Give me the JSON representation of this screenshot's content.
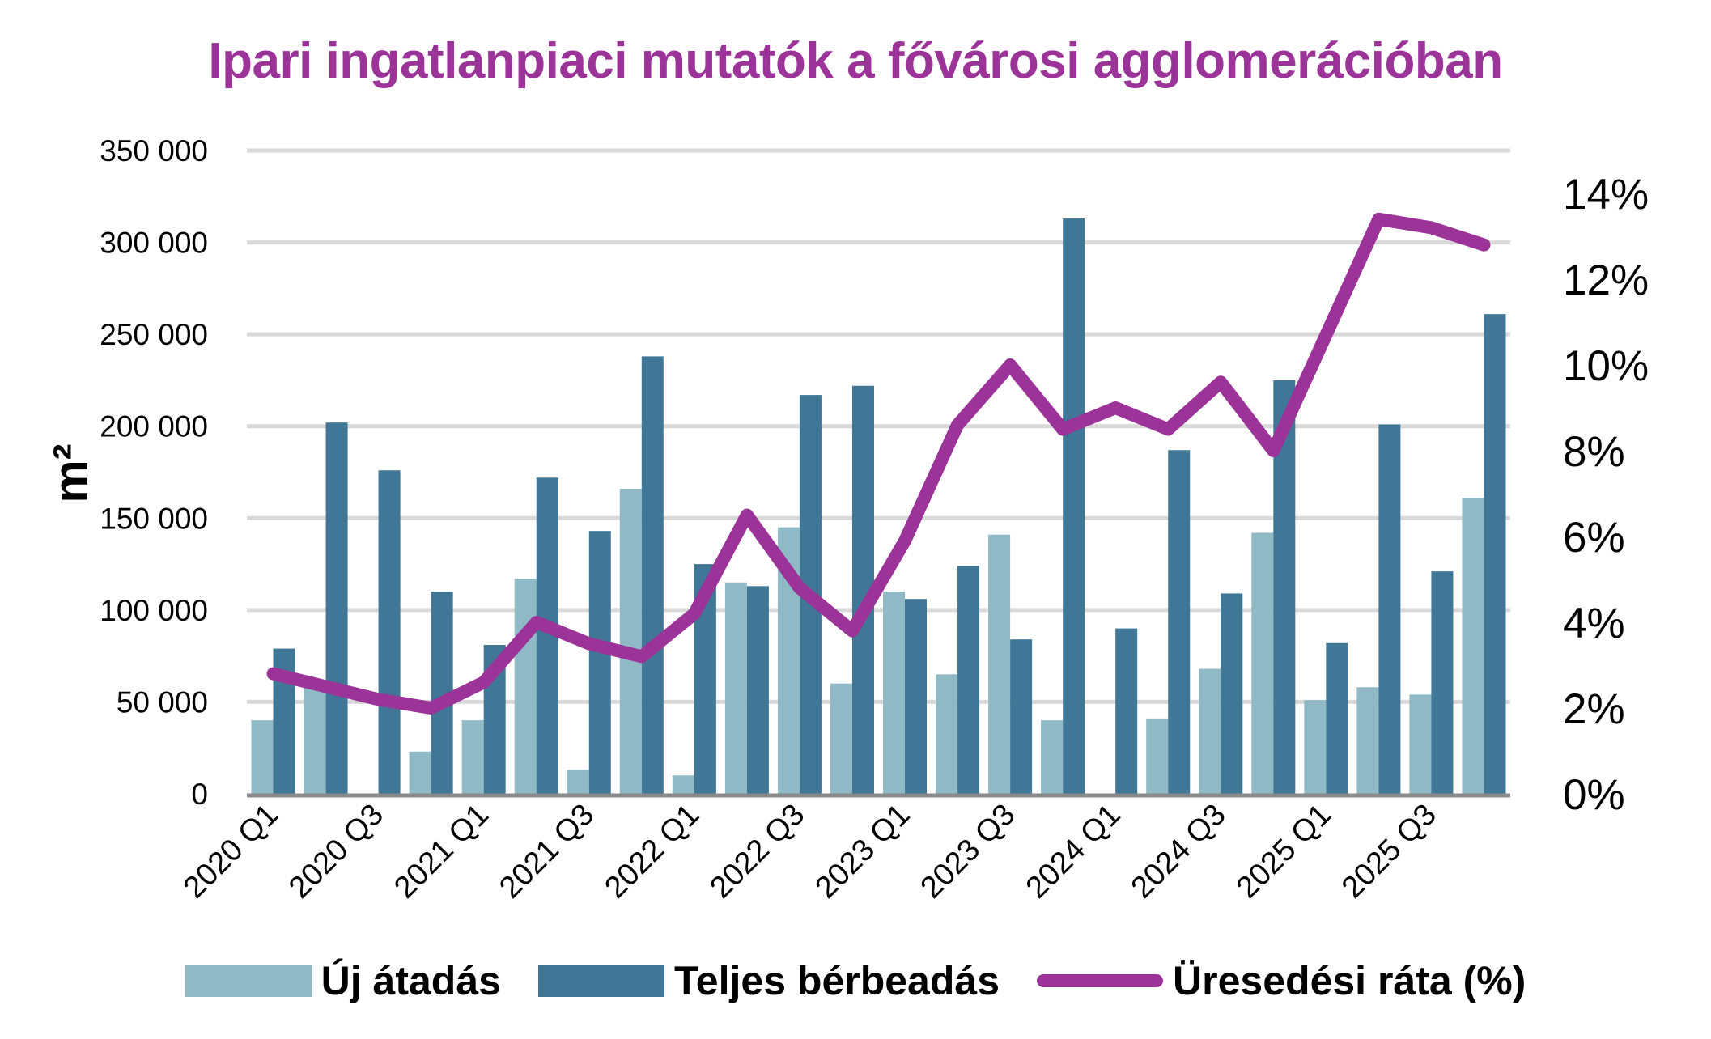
{
  "chart_data": {
    "type": "bar",
    "title": "Ipari ingatlanpiaci mutatók a fővárosi agglomerációban",
    "ylabel": "m²",
    "ylabel_right": "",
    "xlabel": "",
    "ylim": [
      0,
      350000
    ],
    "yticks": [
      0,
      50000,
      100000,
      150000,
      200000,
      250000,
      300000,
      350000
    ],
    "ytick_labels": [
      "0",
      "50 000",
      "100 000",
      "150 000",
      "200 000",
      "250 000",
      "300 000",
      "350 000"
    ],
    "ylim_right": [
      0,
      15
    ],
    "yticks_right_labels": [
      "0%",
      "2%",
      "4%",
      "6%",
      "8%",
      "10%",
      "12%",
      "14%"
    ],
    "yticks_right": [
      0,
      2,
      4,
      6,
      8,
      10,
      12,
      14
    ],
    "grid": true,
    "legend_position": "bottom",
    "categories": [
      "2020 Q1",
      "2020 Q2",
      "2020 Q3",
      "2020 Q4",
      "2021 Q1",
      "2021 Q2",
      "2021 Q3",
      "2021 Q4",
      "2022 Q1",
      "2022 Q2",
      "2022 Q3",
      "2022 Q4",
      "2023 Q1",
      "2023 Q2",
      "2023 Q3",
      "2023 Q4",
      "2024 Q1",
      "2024 Q2",
      "2024 Q3",
      "2024 Q4",
      "2025 Q1",
      "2025 Q2",
      "2025 Q3",
      "2025 Q4"
    ],
    "shown_xtick_labels": [
      "2020 Q1",
      "2020 Q3",
      "2021 Q1",
      "2021 Q3",
      "2022 Q1",
      "2022 Q3",
      "2023 Q1",
      "2023 Q3",
      "2024 Q1",
      "2024 Q3",
      "2025 Q1",
      "2025 Q3"
    ],
    "series": [
      {
        "name": "Új átadás",
        "type": "bar",
        "axis": "left",
        "color": "#8FB9C4",
        "values": [
          40000,
          58000,
          0,
          23000,
          40000,
          117000,
          13000,
          166000,
          10000,
          115000,
          145000,
          60000,
          110000,
          65000,
          141000,
          40000,
          0,
          41000,
          68000,
          142000,
          51000,
          58000,
          54000,
          161000
        ]
      },
      {
        "name": "Teljes bérbeadás",
        "type": "bar",
        "axis": "left",
        "color": "#417796",
        "values": [
          79000,
          202000,
          176000,
          110000,
          81000,
          172000,
          143000,
          238000,
          125000,
          113000,
          217000,
          222000,
          106000,
          124000,
          84000,
          313000,
          90000,
          187000,
          109000,
          225000,
          82000,
          201000,
          121000,
          261000
        ]
      },
      {
        "name": "Üresedési ráta (%)",
        "type": "line",
        "axis": "right",
        "color": "#9B3399",
        "values": [
          2.8,
          2.5,
          2.2,
          2.0,
          2.6,
          4.0,
          3.5,
          3.2,
          4.2,
          6.5,
          4.8,
          3.8,
          5.9,
          8.6,
          10.0,
          8.5,
          9.0,
          8.5,
          9.6,
          8.0,
          10.7,
          13.4,
          13.2,
          12.8
        ]
      }
    ]
  }
}
